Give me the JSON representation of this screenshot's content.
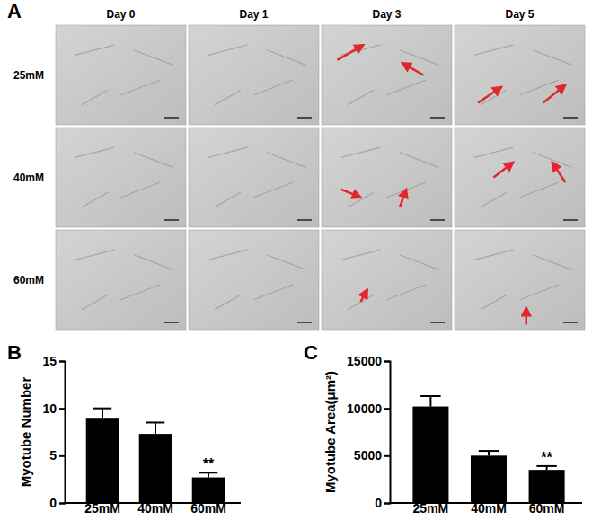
{
  "panel_labels": [
    "A",
    "B",
    "C"
  ],
  "panel_a": {
    "columns": [
      "Day 0",
      "Day 1",
      "Day 3",
      "Day 5"
    ],
    "rows": [
      "25mM",
      "40mM",
      "60mM"
    ]
  },
  "chart_data": [
    {
      "type": "bar",
      "y_label": "Myotube Number",
      "categories": [
        "25mM",
        "40mM",
        "60mM"
      ],
      "values": [
        9.0,
        7.3,
        2.7
      ],
      "errors": [
        1.0,
        1.2,
        0.5
      ],
      "significance": [
        null,
        null,
        "**"
      ],
      "color": "#000000",
      "ylim": [
        0,
        15
      ],
      "yticks": [
        0,
        5,
        10,
        15
      ],
      "grid": false
    },
    {
      "type": "bar",
      "y_label": "Myotube Area(μm²)",
      "categories": [
        "25mM",
        "40mM",
        "60mM"
      ],
      "values": [
        10200,
        5000,
        3500
      ],
      "errors": [
        1100,
        500,
        400
      ],
      "significance": [
        null,
        null,
        "**"
      ],
      "color": "#000000",
      "ylim": [
        0,
        15000
      ],
      "yticks": [
        0,
        5000,
        10000,
        15000
      ],
      "grid": false
    }
  ]
}
